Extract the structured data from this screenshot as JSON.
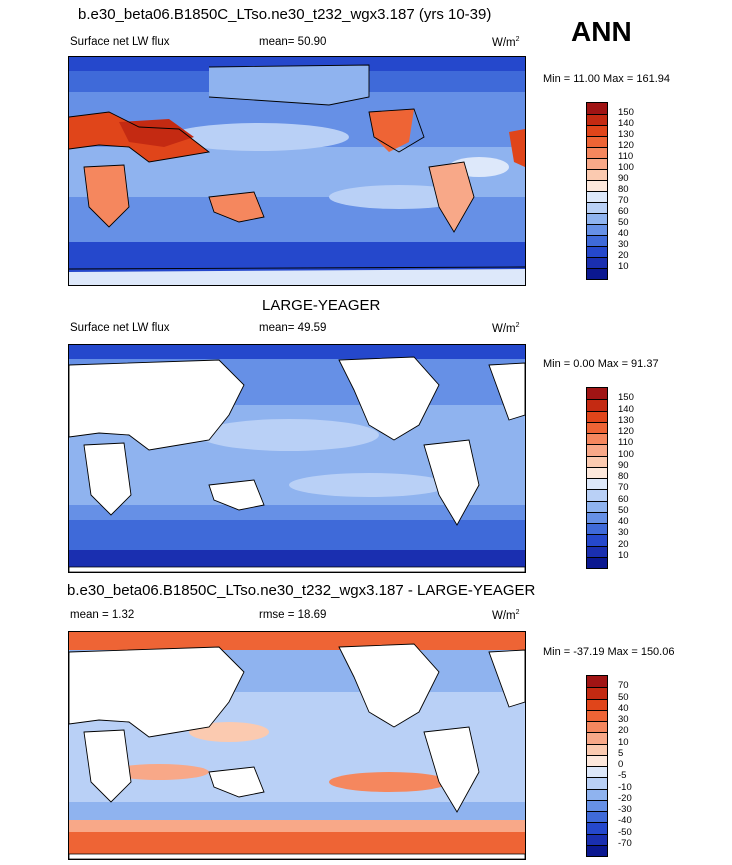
{
  "panel1": {
    "title": "b.e30_beta06.B1850C_LTso.ne30_t232_wgx3.187 (yrs 10-39)",
    "left": "Surface net LW flux",
    "mid": "mean=  50.90",
    "unit": "W/m",
    "unit_sup": "2",
    "minmax": "Min =  11.00 Max = 161.94"
  },
  "season": "ANN",
  "panel2": {
    "title": "LARGE-YEAGER",
    "left": "Surface net LW flux",
    "mid": "mean=  49.59",
    "unit": "W/m",
    "unit_sup": "2",
    "minmax": "Min =   0.00 Max =  91.37"
  },
  "panel3": {
    "title": "b.e30_beta06.B1850C_LTso.ne30_t232_wgx3.187 - LARGE-YEAGER",
    "left": "mean =   1.32",
    "mid": "rmse =  18.69",
    "unit": "W/m",
    "unit_sup": "2",
    "minmax": "Min = -37.19 Max = 150.06"
  },
  "colorbar_abs": {
    "labels": [
      "150",
      "140",
      "130",
      "120",
      "110",
      "100",
      "90",
      "80",
      "70",
      "60",
      "50",
      "40",
      "30",
      "20",
      "10"
    ],
    "colors": [
      "#a01414",
      "#c42a12",
      "#e0451a",
      "#ee6435",
      "#f5875e",
      "#f8a888",
      "#fbcab0",
      "#fde8dc",
      "#dde8fa",
      "#b9d0f6",
      "#8fb3ef",
      "#6690e6",
      "#3f6ad9",
      "#2548cc",
      "#1a2fb0",
      "#0b1890"
    ]
  },
  "colorbar_diff": {
    "labels": [
      "70",
      "50",
      "40",
      "30",
      "20",
      "10",
      "5",
      "0",
      "-5",
      "-10",
      "-20",
      "-30",
      "-40",
      "-50",
      "-70"
    ],
    "colors": [
      "#a01414",
      "#c42a12",
      "#e0451a",
      "#ee6435",
      "#f5875e",
      "#f8a888",
      "#fbcab0",
      "#fde8dc",
      "#dde8fa",
      "#b9d0f6",
      "#8fb3ef",
      "#6690e6",
      "#3f6ad9",
      "#2548cc",
      "#1a2fb0",
      "#0b1890"
    ]
  },
  "land_color": "#ffffff",
  "ocean_colors": {
    "deep": "#3a62d6",
    "mid": "#6f96e6",
    "light": "#b8cff5",
    "warm": "#f0a080",
    "hot": "#d8421e"
  }
}
